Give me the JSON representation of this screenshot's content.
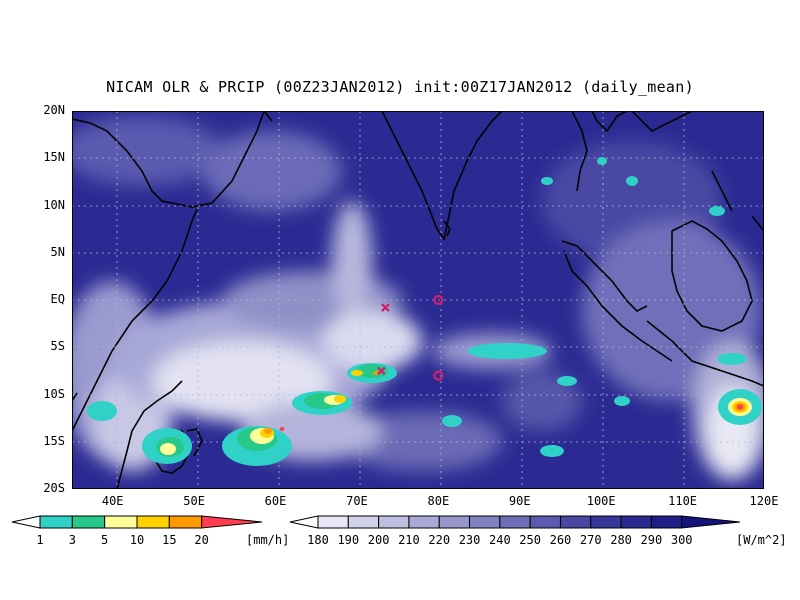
{
  "title": "NICAM OLR & PRCIP (00Z23JAN2012) init:00Z17JAN2012 (daily_mean)",
  "map": {
    "lat_labels": [
      "20N",
      "15N",
      "10N",
      "5N",
      "EQ",
      "5S",
      "10S",
      "15S",
      "20S"
    ],
    "lon_labels": [
      "40E",
      "50E",
      "60E",
      "70E",
      "80E",
      "90E",
      "100E",
      "110E",
      "120E"
    ],
    "lon_range": [
      35,
      120
    ],
    "lat_range": [
      -20,
      20
    ],
    "markers": [
      {
        "type": "x-mark",
        "lon": 73.5,
        "lat": -0.8,
        "color": "#d0206e"
      },
      {
        "type": "circle",
        "lon": 80,
        "lat": 0,
        "color": "#d0206e"
      },
      {
        "type": "x-mark",
        "lon": 73,
        "lat": -7.5,
        "color": "#d0206e"
      },
      {
        "type": "circle",
        "lon": 80,
        "lat": -8,
        "color": "#d0206e"
      }
    ]
  },
  "precip_colorbar": {
    "labels": [
      "1",
      "3",
      "5",
      "10",
      "15",
      "20"
    ],
    "unit": "[mm/h]",
    "colors": [
      "#30d2c8",
      "#28c88a",
      "#ffff9a",
      "#ffd200",
      "#ff9a00",
      "#ff3c50"
    ]
  },
  "olr_colorbar": {
    "labels": [
      "180",
      "190",
      "200",
      "210",
      "220",
      "230",
      "240",
      "250",
      "260",
      "270",
      "280",
      "290",
      "300"
    ],
    "unit": "[W/m^2]",
    "colors": [
      "#e6e6f4",
      "#d2d2ea",
      "#bebee0",
      "#aaaad6",
      "#9696cc",
      "#8282c2",
      "#6e6eb8",
      "#5a5aae",
      "#4848a4",
      "#38389a",
      "#2a2a90",
      "#1e1e86",
      "#14147c"
    ]
  }
}
